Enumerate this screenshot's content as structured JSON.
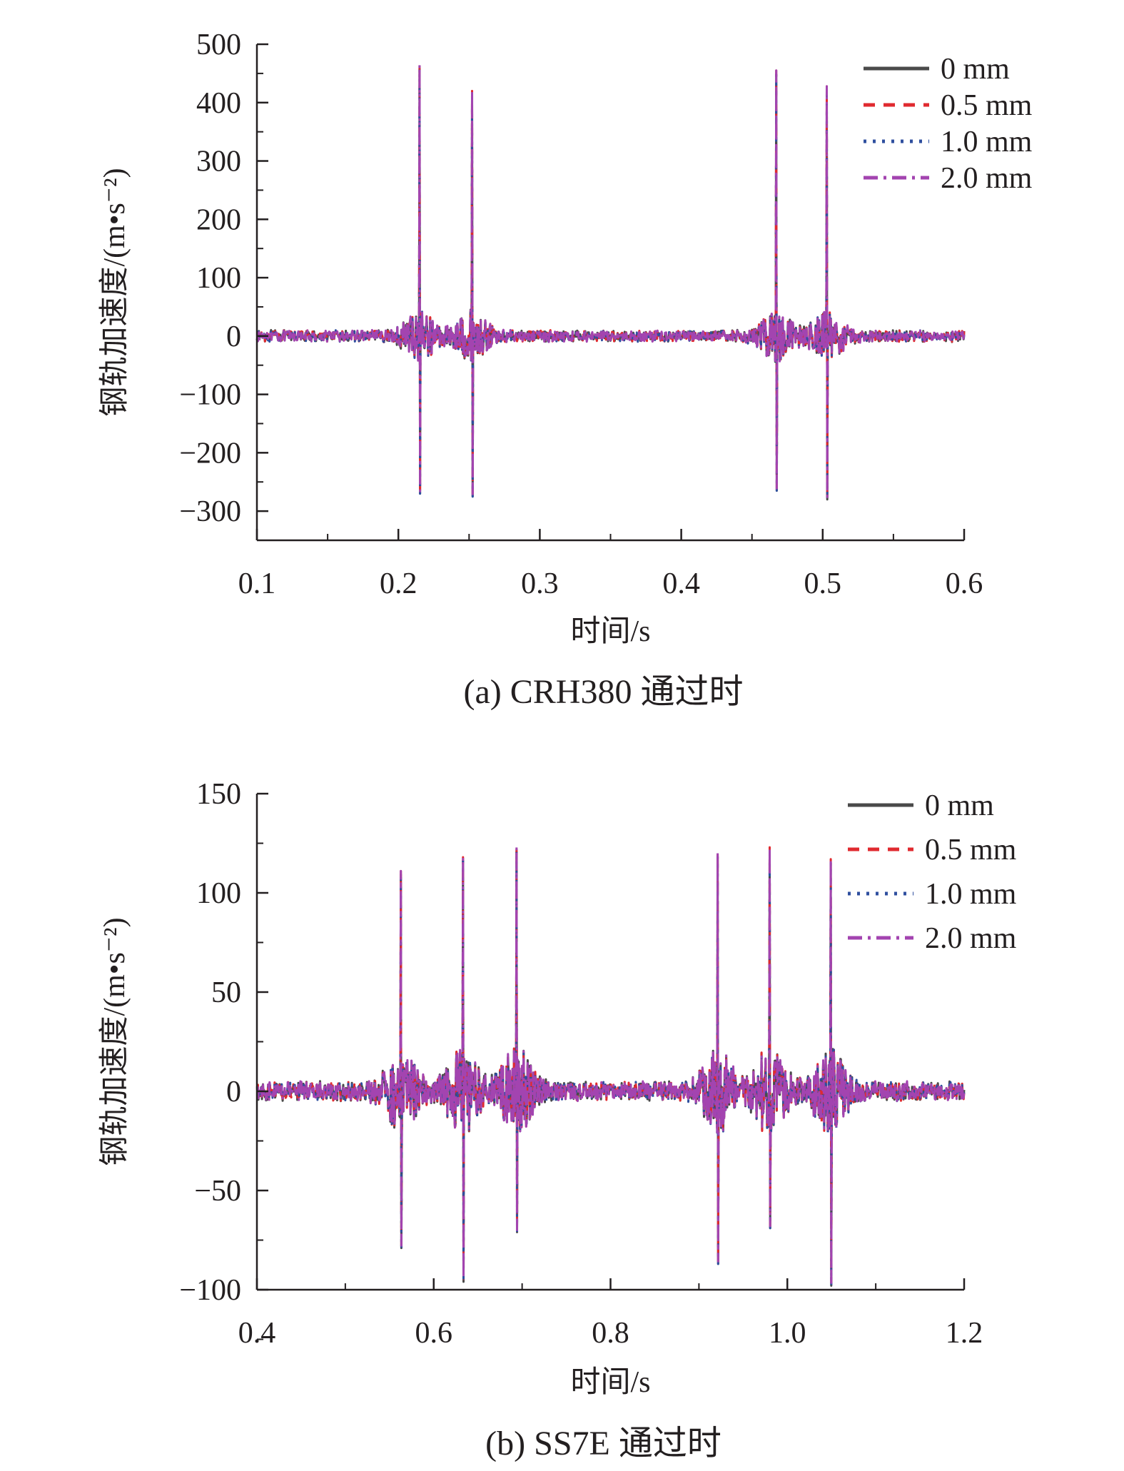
{
  "chart_data": [
    {
      "type": "line",
      "caption": "(a) CRH380 通过时",
      "xlabel": "时间/s",
      "ylabel": "钢轨加速度/(m•s⁻²)",
      "xlim": [
        0.1,
        0.6
      ],
      "ylim": [
        -350,
        500
      ],
      "xticks": [
        0.1,
        0.2,
        0.3,
        0.4,
        0.5,
        0.6
      ],
      "xtick_labels": [
        "0.1",
        "0.2",
        "0.3",
        "0.4",
        "0.5",
        "0.6"
      ],
      "yticks": [
        500,
        400,
        300,
        200,
        100,
        0,
        -100,
        -200,
        -300
      ],
      "ytick_labels": [
        "500",
        "400",
        "300",
        "200",
        "100",
        "0",
        "−100",
        "−200",
        "−300"
      ],
      "legend_position": "top-right",
      "grid": false,
      "noise_amplitude": 8,
      "peaks": [
        {
          "x": 0.215,
          "max": 465,
          "min": -270
        },
        {
          "x": 0.252,
          "max": 420,
          "min": -275
        },
        {
          "x": 0.467,
          "max": 455,
          "min": -265
        },
        {
          "x": 0.503,
          "max": 428,
          "min": -280
        }
      ],
      "series": [
        {
          "name": "0 mm",
          "color": "#4a4a4a",
          "style": "solid"
        },
        {
          "name": "0.5 mm",
          "color": "#e02a2f",
          "style": "dash"
        },
        {
          "name": "1.0 mm",
          "color": "#2f4f9f",
          "style": "dot"
        },
        {
          "name": "2.0 mm",
          "color": "#a344b0",
          "style": "dashdot"
        }
      ]
    },
    {
      "type": "line",
      "caption": "(b) SS7E 通过时",
      "xlabel": "时间/s",
      "ylabel": "钢轨加速度/(m•s⁻²)",
      "xlim": [
        0.4,
        1.2
      ],
      "ylim": [
        -100,
        150
      ],
      "xticks": [
        0.4,
        0.6,
        0.8,
        1.0,
        1.2
      ],
      "xtick_labels": [
        "0.4",
        "0.6",
        "0.8",
        "1.0",
        "1.2"
      ],
      "yticks": [
        150,
        100,
        50,
        0,
        -50,
        -100
      ],
      "ytick_labels": [
        "150",
        "100",
        "50",
        "0",
        "−50",
        "−100"
      ],
      "legend_position": "top-right",
      "grid": false,
      "noise_amplitude": 4,
      "peaks": [
        {
          "x": 0.563,
          "max": 111,
          "min": -79
        },
        {
          "x": 0.633,
          "max": 118,
          "min": -96
        },
        {
          "x": 0.694,
          "max": 123,
          "min": -71
        },
        {
          "x": 0.921,
          "max": 120,
          "min": -87
        },
        {
          "x": 0.98,
          "max": 123,
          "min": -69
        },
        {
          "x": 1.049,
          "max": 117,
          "min": -98
        }
      ],
      "series": [
        {
          "name": "0 mm",
          "color": "#4a4a4a",
          "style": "solid"
        },
        {
          "name": "0.5 mm",
          "color": "#e02a2f",
          "style": "dash"
        },
        {
          "name": "1.0 mm",
          "color": "#2f4f9f",
          "style": "dot"
        },
        {
          "name": "2.0 mm",
          "color": "#a344b0",
          "style": "dashdot"
        }
      ]
    }
  ]
}
